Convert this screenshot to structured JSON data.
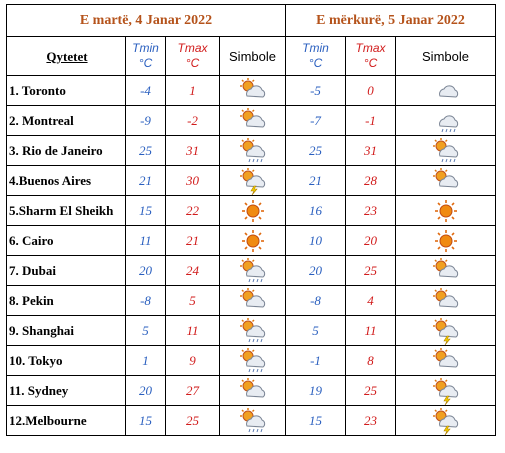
{
  "headers": {
    "days": [
      {
        "title": "E martë, 4 Janar 2022",
        "tmin_label": "Tmin",
        "tmin_unit": "°C",
        "tmax_label": "Tmax",
        "tmax_unit": "°C",
        "symbol_label": "Simbole"
      },
      {
        "title": "E mërkurë, 5 Janar 2022",
        "tmin_label": "Tmin",
        "tmin_unit": "°C",
        "tmax_label": "Tmax",
        "tmax_unit": "°C",
        "symbol_label": "Simbole"
      }
    ],
    "city_label": "Qytetet"
  },
  "table": {
    "rows": [
      [
        "1. Toronto",
        -4,
        1,
        -5,
        0
      ],
      [
        "2. Montreal",
        -9,
        -2,
        -7,
        -1
      ],
      [
        "3. Rio de Janeiro",
        25,
        31,
        25,
        31
      ],
      [
        "4.Buenos Aires",
        21,
        30,
        21,
        28
      ],
      [
        "5.Sharm El Sheikh",
        15,
        22,
        16,
        23
      ],
      [
        "6. Cairo",
        11,
        21,
        10,
        20
      ],
      [
        "7. Dubai",
        20,
        24,
        20,
        25
      ],
      [
        "8. Pekin",
        -8,
        5,
        -8,
        4
      ],
      [
        "9. Shanghai",
        5,
        11,
        5,
        11
      ],
      [
        "10. Tokyo",
        1,
        9,
        -1,
        8
      ],
      [
        "11. Sydney",
        20,
        27,
        19,
        25
      ],
      [
        "12.Melbourne",
        15,
        25,
        15,
        23
      ]
    ]
  }
}
